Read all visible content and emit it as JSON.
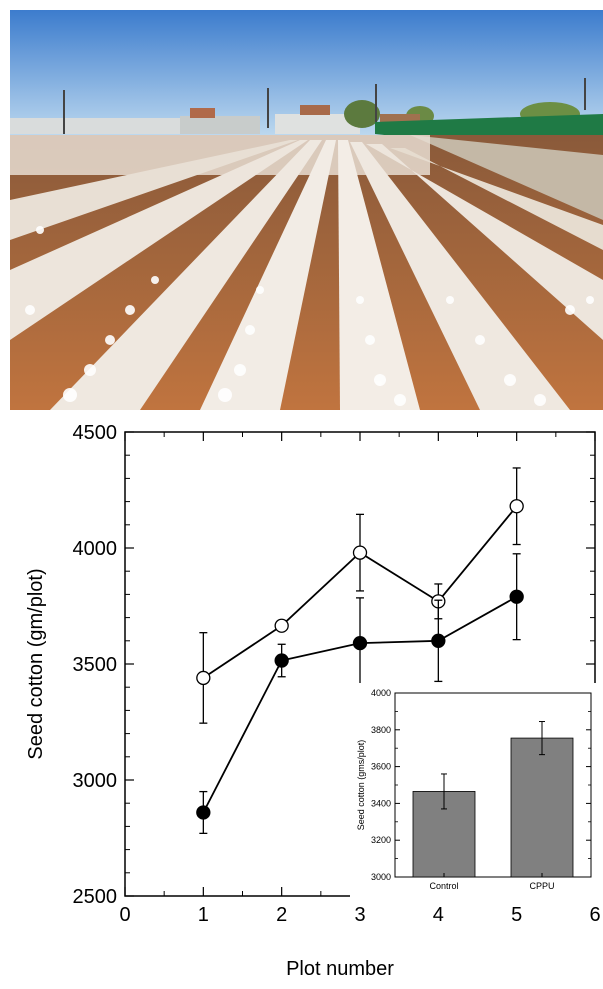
{
  "chart_data": [
    {
      "type": "line",
      "xlabel": "Plot number",
      "ylabel": "Seed cotton (gm/plot)",
      "xlim": [
        0,
        6
      ],
      "ylim": [
        2500,
        4500
      ],
      "xticks": [
        "0",
        "1",
        "2",
        "3",
        "4",
        "5",
        "6"
      ],
      "yticks": [
        "2500",
        "3000",
        "3500",
        "4000",
        "4500"
      ],
      "grid": false,
      "legend": "none",
      "series": [
        {
          "marker": "open-circle",
          "x": [
            1,
            2,
            3,
            4,
            5
          ],
          "y": [
            3440,
            3665,
            3980,
            3770,
            4180
          ],
          "err": [
            195,
            0,
            165,
            75,
            165
          ]
        },
        {
          "marker": "filled-circle",
          "x": [
            1,
            2,
            3,
            4,
            5
          ],
          "y": [
            2860,
            3515,
            3590,
            3600,
            3790
          ],
          "err": [
            90,
            70,
            195,
            175,
            185
          ]
        }
      ]
    },
    {
      "type": "bar",
      "ylabel": "Seed cotton (gms/plot)",
      "categories": [
        "Control",
        "CPPU"
      ],
      "values": [
        3465,
        3755
      ],
      "err": [
        95,
        90
      ],
      "ylim": [
        3000,
        4000
      ],
      "yticks": [
        "3000",
        "3200",
        "3400",
        "3600",
        "3800",
        "4000"
      ],
      "bar_color": "#808080"
    }
  ],
  "colors": {
    "sky_top": "#3f7fcf",
    "sky_bottom": "#b9d6ee",
    "soil": "#b5683a",
    "cotton": "#f4f1ec",
    "fence": "#1f7a45"
  }
}
